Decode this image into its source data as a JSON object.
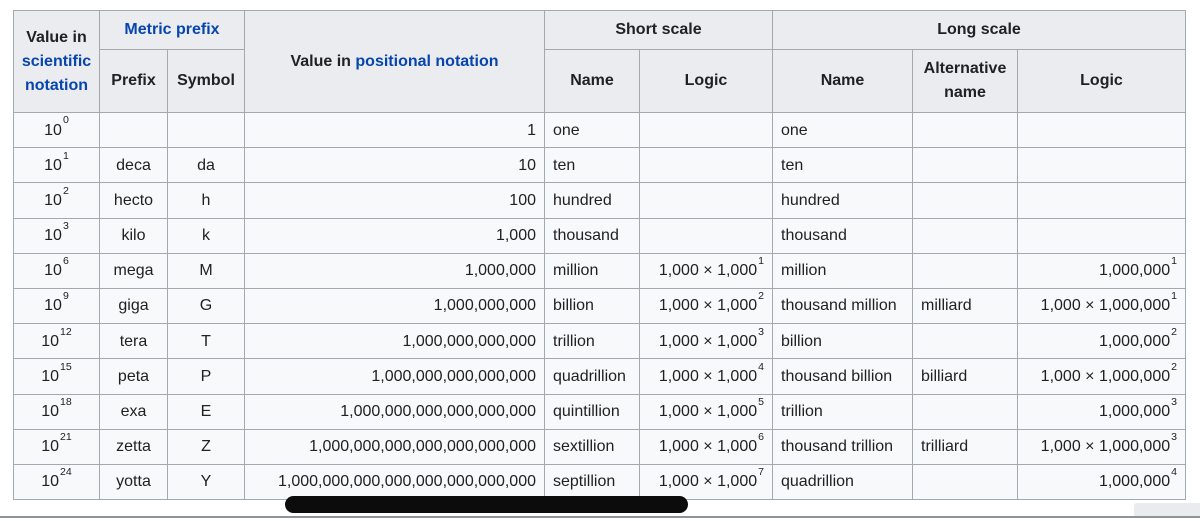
{
  "colors": {
    "link_blue": "#0645ad",
    "header_bg": "#eaecf0",
    "row_bg": "#f8f9fa",
    "border_gray": "#a2a9b1",
    "marker_black": "#0c0c0c",
    "divider_gray": "#8f9499"
  },
  "header": {
    "col_value_sci": {
      "prefix": "Value in",
      "link": "scientific notation"
    },
    "col_metric_prefix": {
      "link": "Metric prefix"
    },
    "col_positional": {
      "prefix": "Value in",
      "link": "positional notation"
    },
    "group_short_scale": "Short scale",
    "group_long_scale": "Long scale",
    "sub_prefix": "Prefix",
    "sub_symbol": "Symbol",
    "sub_short_name": "Name",
    "sub_short_logic": "Logic",
    "sub_long_name": "Name",
    "sub_long_alt": "Alternative name",
    "sub_long_logic": "Logic"
  },
  "table": {
    "rows": [
      {
        "sci": {
          "base": "10",
          "exp": "0"
        },
        "prefix": "",
        "symbol": "",
        "positional": "1",
        "short_name": "one",
        "short_logic": null,
        "long_name": "one",
        "alt_name": "",
        "long_logic": null
      },
      {
        "sci": {
          "base": "10",
          "exp": "1"
        },
        "prefix": "deca",
        "symbol": "da",
        "positional": "10",
        "short_name": "ten",
        "short_logic": null,
        "long_name": "ten",
        "alt_name": "",
        "long_logic": null
      },
      {
        "sci": {
          "base": "10",
          "exp": "2"
        },
        "prefix": "hecto",
        "symbol": "h",
        "positional": "100",
        "short_name": "hundred",
        "short_logic": null,
        "long_name": "hundred",
        "alt_name": "",
        "long_logic": null
      },
      {
        "sci": {
          "base": "10",
          "exp": "3"
        },
        "prefix": "kilo",
        "symbol": "k",
        "positional": "1,000",
        "short_name": "thousand",
        "short_logic": null,
        "long_name": "thousand",
        "alt_name": "",
        "long_logic": null
      },
      {
        "sci": {
          "base": "10",
          "exp": "6"
        },
        "prefix": "mega",
        "symbol": "M",
        "positional": "1,000,000",
        "short_name": "million",
        "short_logic": {
          "base": "1,000 × 1,000",
          "exp": "1"
        },
        "long_name": "million",
        "alt_name": "",
        "long_logic": {
          "base": "1,000,000",
          "exp": "1"
        }
      },
      {
        "sci": {
          "base": "10",
          "exp": "9"
        },
        "prefix": "giga",
        "symbol": "G",
        "positional": "1,000,000,000",
        "short_name": "billion",
        "short_logic": {
          "base": "1,000 × 1,000",
          "exp": "2"
        },
        "long_name": "thousand million",
        "alt_name": "milliard",
        "long_logic": {
          "base": "1,000 × 1,000,000",
          "exp": "1"
        }
      },
      {
        "sci": {
          "base": "10",
          "exp": "12"
        },
        "prefix": "tera",
        "symbol": "T",
        "positional": "1,000,000,000,000",
        "short_name": "trillion",
        "short_logic": {
          "base": "1,000 × 1,000",
          "exp": "3"
        },
        "long_name": "billion",
        "alt_name": "",
        "long_logic": {
          "base": "1,000,000",
          "exp": "2"
        }
      },
      {
        "sci": {
          "base": "10",
          "exp": "15"
        },
        "prefix": "peta",
        "symbol": "P",
        "positional": "1,000,000,000,000,000",
        "short_name": "quadrillion",
        "short_logic": {
          "base": "1,000 × 1,000",
          "exp": "4"
        },
        "long_name": "thousand billion",
        "alt_name": "billiard",
        "long_logic": {
          "base": "1,000 × 1,000,000",
          "exp": "2"
        }
      },
      {
        "sci": {
          "base": "10",
          "exp": "18"
        },
        "prefix": "exa",
        "symbol": "E",
        "positional": "1,000,000,000,000,000,000",
        "short_name": "quintillion",
        "short_logic": {
          "base": "1,000 × 1,000",
          "exp": "5"
        },
        "long_name": "trillion",
        "alt_name": "",
        "long_logic": {
          "base": "1,000,000",
          "exp": "3"
        }
      },
      {
        "sci": {
          "base": "10",
          "exp": "21"
        },
        "prefix": "zetta",
        "symbol": "Z",
        "positional": "1,000,000,000,000,000,000,000",
        "short_name": "sextillion",
        "short_logic": {
          "base": "1,000 × 1,000",
          "exp": "6"
        },
        "long_name": "thousand trillion",
        "alt_name": "trilliard",
        "long_logic": {
          "base": "1,000 × 1,000,000",
          "exp": "3"
        }
      },
      {
        "sci": {
          "base": "10",
          "exp": "24"
        },
        "prefix": "yotta",
        "symbol": "Y",
        "positional": "1,000,000,000,000,000,000,000,000",
        "short_name": "septillion",
        "short_logic": {
          "base": "1,000 × 1,000",
          "exp": "7"
        },
        "long_name": "quadrillion",
        "alt_name": "",
        "long_logic": {
          "base": "1,000,000",
          "exp": "4"
        }
      }
    ]
  }
}
